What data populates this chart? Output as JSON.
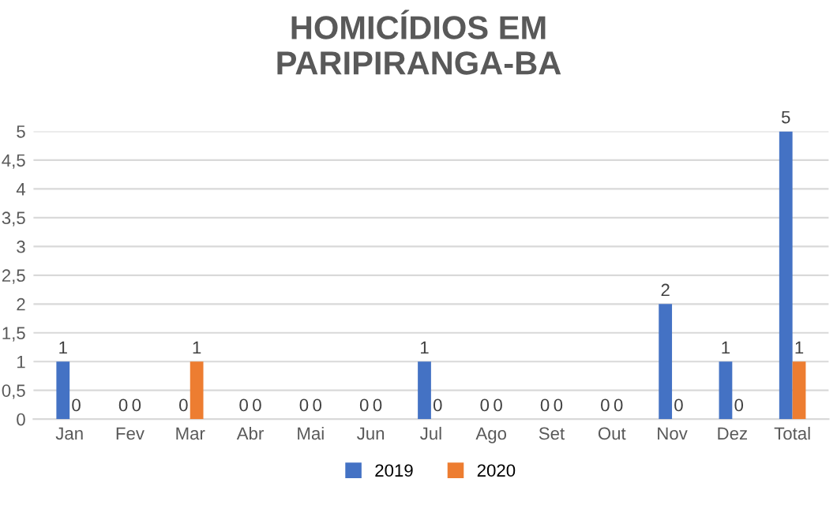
{
  "chart_data": {
    "type": "bar",
    "title": "HOMICÍDIOS EM\nPARIPIRANGA-BA",
    "categories": [
      "Jan",
      "Fev",
      "Mar",
      "Abr",
      "Mai",
      "Jun",
      "Jul",
      "Ago",
      "Set",
      "Out",
      "Nov",
      "Dez",
      "Total"
    ],
    "series": [
      {
        "name": "2019",
        "color": "#4472c4",
        "values": [
          1,
          0,
          0,
          0,
          0,
          0,
          1,
          0,
          0,
          0,
          2,
          1,
          5
        ]
      },
      {
        "name": "2020",
        "color": "#ed7d31",
        "values": [
          0,
          0,
          1,
          0,
          0,
          0,
          0,
          0,
          0,
          0,
          0,
          0,
          1
        ]
      }
    ],
    "ylim": [
      0,
      5
    ],
    "yticks": [
      0,
      {
        "value": 0.5,
        "label": "0,5"
      },
      1,
      {
        "value": 1.5,
        "label": "1,5"
      },
      2,
      {
        "value": 2.5,
        "label": "2,5"
      },
      3,
      {
        "value": 3.5,
        "label": "3,5"
      },
      4,
      {
        "value": 4.5,
        "label": "4,5"
      },
      5
    ],
    "grid": "y",
    "legend": "bottom",
    "data_labels": true
  }
}
